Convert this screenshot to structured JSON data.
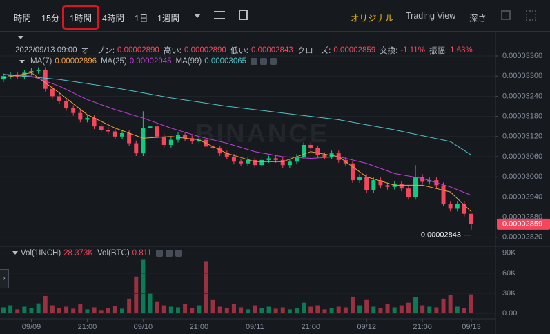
{
  "toolbar": {
    "intervals": [
      "時間",
      "15分",
      "1時間",
      "4時間",
      "1日",
      "1週間"
    ],
    "views": [
      "オリジナル",
      "Trading View",
      "深さ"
    ]
  },
  "info": {
    "datetime": "2022/09/13 09:00",
    "items": [
      {
        "label": "オープン:",
        "value": "0.00002890"
      },
      {
        "label": "高い:",
        "value": "0.00002890"
      },
      {
        "label": "低い:",
        "value": "0.00002843"
      },
      {
        "label": "クローズ:",
        "value": "0.00002859"
      },
      {
        "label": "交換:",
        "value": "-1.11%"
      },
      {
        "label": "振幅:",
        "value": "1.63%"
      }
    ]
  },
  "chart_data": [
    {
      "type": "candlestick",
      "watermark": "BINANCE",
      "grid": true,
      "up_color": "#0ecb81",
      "down_color": "#f6465d",
      "categories": [
        null,
        null,
        null,
        null,
        "09/09",
        null,
        null,
        null,
        null,
        null,
        null,
        null,
        "21:00",
        null,
        null,
        null,
        null,
        null,
        null,
        null,
        "09/10",
        null,
        null,
        null,
        null,
        null,
        null,
        null,
        "21:00",
        null,
        null,
        null,
        null,
        null,
        null,
        null,
        "09/11",
        null,
        null,
        null,
        null,
        null,
        null,
        null,
        "21:00",
        null,
        null,
        null,
        null,
        null,
        null,
        null,
        "09/12",
        null,
        null,
        null,
        null,
        null,
        null,
        null,
        "21:00",
        null,
        null,
        null,
        null,
        null,
        null,
        "09/13"
      ],
      "open": [
        3.29e-05,
        3.3e-05,
        3.305e-05,
        3.298e-05,
        3.31e-05,
        3.315e-05,
        3.318e-05,
        3.262e-05,
        3.24e-05,
        3.225e-05,
        3.205e-05,
        3.19e-05,
        3.17e-05,
        3.175e-05,
        3.15e-05,
        3.14e-05,
        3.135e-05,
        3.12e-05,
        3.13e-05,
        3.1e-05,
        3.07e-05,
        3.145e-05,
        3.15e-05,
        3.12e-05,
        3.095e-05,
        3.11e-05,
        3.125e-05,
        3.115e-05,
        3.105e-05,
        3.11e-05,
        3.09e-05,
        3.085e-05,
        3.07e-05,
        3.06e-05,
        3.045e-05,
        3.04e-05,
        3.05e-05,
        3.035e-05,
        3.05e-05,
        3.055e-05,
        3.05e-05,
        3.035e-05,
        3.045e-05,
        3.06e-05,
        3.095e-05,
        3.085e-05,
        3.065e-05,
        3.06e-05,
        3.07e-05,
        3.05e-05,
        3.04e-05,
        2.99e-05,
        3e-05,
        2.96e-05,
        2.99e-05,
        2.975e-05,
        2.97e-05,
        2.98e-05,
        2.965e-05,
        2.94e-05,
        3e-05,
        2.985e-05,
        2.99e-05,
        2.975e-05,
        2.92e-05,
        2.905e-05,
        2.92e-05,
        2.89e-05
      ],
      "high": [
        3.308e-05,
        3.313e-05,
        3.313e-05,
        3.318e-05,
        3.323e-05,
        3.326e-05,
        3.326e-05,
        3.27e-05,
        3.248e-05,
        3.233e-05,
        3.213e-05,
        3.198e-05,
        3.183e-05,
        3.183e-05,
        3.158e-05,
        3.148e-05,
        3.143e-05,
        3.138e-05,
        3.138e-05,
        3.108e-05,
        3.195e-05,
        3.158e-05,
        3.158e-05,
        3.128e-05,
        3.118e-05,
        3.133e-05,
        3.133e-05,
        3.123e-05,
        3.118e-05,
        3.118e-05,
        3.098e-05,
        3.093e-05,
        3.078e-05,
        3.068e-05,
        3.053e-05,
        3.058e-05,
        3.058e-05,
        3.058e-05,
        3.063e-05,
        3.063e-05,
        3.058e-05,
        3.053e-05,
        3.068e-05,
        3.103e-05,
        3.103e-05,
        3.093e-05,
        3.073e-05,
        3.078e-05,
        3.078e-05,
        3.058e-05,
        3.048e-05,
        3.008e-05,
        3.008e-05,
        2.998e-05,
        2.998e-05,
        2.983e-05,
        2.988e-05,
        2.988e-05,
        2.973e-05,
        3.035e-05,
        3.008e-05,
        2.998e-05,
        2.998e-05,
        2.983e-05,
        2.928e-05,
        2.928e-05,
        2.928e-05,
        2.89e-05
      ],
      "low": [
        3.282e-05,
        3.292e-05,
        3.29e-05,
        3.29e-05,
        3.302e-05,
        3.307e-05,
        3.254e-05,
        3.232e-05,
        3.217e-05,
        3.197e-05,
        3.182e-05,
        3.162e-05,
        3.162e-05,
        3.142e-05,
        3.132e-05,
        3.127e-05,
        3.112e-05,
        3.112e-05,
        3.092e-05,
        3.062e-05,
        3.062e-05,
        3.137e-05,
        3.112e-05,
        3.087e-05,
        3.087e-05,
        3.102e-05,
        3.107e-05,
        3.097e-05,
        3.097e-05,
        3.082e-05,
        3.077e-05,
        3.062e-05,
        3.052e-05,
        3.037e-05,
        3.032e-05,
        3.032e-05,
        3.027e-05,
        3.027e-05,
        3.042e-05,
        3.042e-05,
        3.027e-05,
        3.027e-05,
        3.037e-05,
        3.052e-05,
        3.077e-05,
        3.057e-05,
        3.052e-05,
        3.052e-05,
        3.042e-05,
        3.032e-05,
        2.982e-05,
        2.982e-05,
        2.952e-05,
        2.952e-05,
        2.967e-05,
        2.962e-05,
        2.962e-05,
        2.957e-05,
        2.932e-05,
        2.932e-05,
        2.977e-05,
        2.977e-05,
        2.967e-05,
        2.912e-05,
        2.897e-05,
        2.897e-05,
        2.882e-05,
        2.843e-05
      ],
      "close": [
        3.3e-05,
        3.305e-05,
        3.298e-05,
        3.31e-05,
        3.315e-05,
        3.318e-05,
        3.262e-05,
        3.24e-05,
        3.225e-05,
        3.205e-05,
        3.19e-05,
        3.17e-05,
        3.175e-05,
        3.15e-05,
        3.14e-05,
        3.135e-05,
        3.12e-05,
        3.13e-05,
        3.1e-05,
        3.07e-05,
        3.145e-05,
        3.15e-05,
        3.12e-05,
        3.095e-05,
        3.11e-05,
        3.125e-05,
        3.115e-05,
        3.105e-05,
        3.11e-05,
        3.09e-05,
        3.085e-05,
        3.07e-05,
        3.06e-05,
        3.045e-05,
        3.04e-05,
        3.05e-05,
        3.035e-05,
        3.05e-05,
        3.055e-05,
        3.05e-05,
        3.035e-05,
        3.045e-05,
        3.06e-05,
        3.095e-05,
        3.085e-05,
        3.065e-05,
        3.06e-05,
        3.07e-05,
        3.05e-05,
        3.04e-05,
        2.99e-05,
        3e-05,
        2.96e-05,
        2.99e-05,
        2.975e-05,
        2.97e-05,
        2.98e-05,
        2.965e-05,
        2.94e-05,
        3e-05,
        2.985e-05,
        2.99e-05,
        2.975e-05,
        2.92e-05,
        2.905e-05,
        2.92e-05,
        2.89e-05,
        2.859e-05
      ],
      "lines": [
        {
          "name": "MA(7)",
          "value_label": "0.00002896",
          "color": "#f0a03c",
          "x": [
            0,
            4,
            8,
            12,
            16,
            20,
            24,
            28,
            32,
            36,
            40,
            44,
            48,
            52,
            56,
            60,
            64,
            67
          ],
          "values": [
            3.295e-05,
            3.31e-05,
            3.25e-05,
            3.185e-05,
            3.145e-05,
            3.115e-05,
            3.12e-05,
            3.11e-05,
            3.07e-05,
            3.045e-05,
            3.045e-05,
            3.075e-05,
            3.06e-05,
            3e-05,
            2.975e-05,
            2.975e-05,
            2.955e-05,
            2.896e-05
          ]
        },
        {
          "name": "MA(25)",
          "value_label": "0.00002945",
          "color": "#c13fd8",
          "x": [
            0,
            4,
            8,
            12,
            16,
            20,
            24,
            28,
            32,
            36,
            40,
            44,
            48,
            52,
            56,
            60,
            64,
            67
          ],
          "values": [
            3.305e-05,
            3.3e-05,
            3.27e-05,
            3.23e-05,
            3.2e-05,
            3.175e-05,
            3.145e-05,
            3.12e-05,
            3.1e-05,
            3.075e-05,
            3.06e-05,
            3.055e-05,
            3.06e-05,
            3.04e-05,
            3.01e-05,
            2.995e-05,
            2.97e-05,
            2.945e-05
          ]
        },
        {
          "name": "MA(99)",
          "value_label": "0.00003065",
          "color": "#4fc3c8",
          "x": [
            0,
            8,
            16,
            24,
            32,
            40,
            48,
            56,
            64,
            67
          ],
          "values": [
            3.305e-05,
            3.29e-05,
            3.265e-05,
            3.235e-05,
            3.21e-05,
            3.19e-05,
            3.17e-05,
            3.14e-05,
            3.105e-05,
            3.065e-05
          ]
        }
      ],
      "ylim": [
        2.797e-05,
        3.434e-05
      ],
      "yticks": [
        {
          "value": 3.36e-05,
          "label": "0.00003360"
        },
        {
          "value": 3.3e-05,
          "label": "0.00003300"
        },
        {
          "value": 3.24e-05,
          "label": "0.00003240"
        },
        {
          "value": 3.18e-05,
          "label": "0.00003180"
        },
        {
          "value": 3.12e-05,
          "label": "0.00003120"
        },
        {
          "value": 3.06e-05,
          "label": "0.00003060"
        },
        {
          "value": 3e-05,
          "label": "0.00003000"
        },
        {
          "value": 2.94e-05,
          "label": "0.00002940"
        },
        {
          "value": 2.88e-05,
          "label": "0.00002880"
        },
        {
          "value": 2.82e-05,
          "label": "0.00002820"
        }
      ],
      "last_price_label": "0.00002859",
      "low_label": "0.00002843"
    },
    {
      "type": "bar",
      "legend": [
        {
          "name": "Vol(1INCH)",
          "value_label": "28.373K"
        },
        {
          "name": "Vol(BTC)",
          "value_label": "0.811"
        }
      ],
      "values": [
        9000,
        12000,
        6000,
        10000,
        8000,
        15000,
        26000,
        12000,
        8000,
        10000,
        7000,
        14000,
        6000,
        9000,
        5000,
        8000,
        11000,
        7000,
        22000,
        55000,
        80000,
        30000,
        18000,
        12000,
        10000,
        9000,
        14000,
        8000,
        12000,
        78000,
        20000,
        10000,
        8000,
        14000,
        9000,
        6000,
        12000,
        8000,
        10000,
        7000,
        9000,
        6000,
        8000,
        16000,
        10000,
        12000,
        6000,
        8000,
        10000,
        9000,
        25000,
        12000,
        20000,
        10000,
        8000,
        14000,
        9000,
        12000,
        16000,
        24000,
        12000,
        10000,
        9000,
        22000,
        28000,
        10000,
        8000,
        28373
      ],
      "up_color": "#0b7a55",
      "down_color": "#9b3140",
      "ylim": [
        -8000,
        99000
      ],
      "yticks": [
        {
          "value": 0,
          "label": "0.00"
        },
        {
          "value": 30000,
          "label": "30K"
        },
        {
          "value": 60000,
          "label": "60K"
        },
        {
          "value": 90000,
          "label": "90K"
        }
      ]
    }
  ]
}
